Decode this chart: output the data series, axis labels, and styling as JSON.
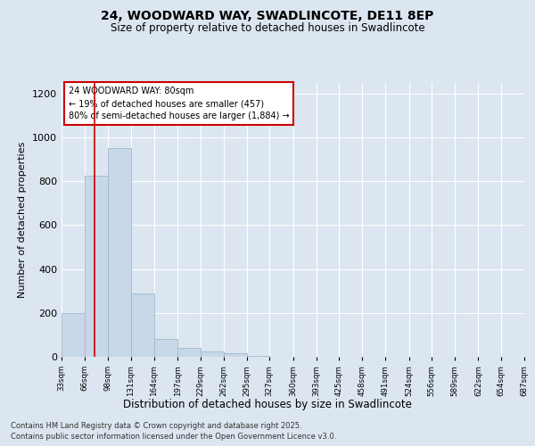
{
  "title1": "24, WOODWARD WAY, SWADLINCOTE, DE11 8EP",
  "title2": "Size of property relative to detached houses in Swadlincote",
  "xlabel": "Distribution of detached houses by size in Swadlincote",
  "ylabel": "Number of detached properties",
  "bar_edges": [
    33,
    66,
    98,
    131,
    164,
    197,
    229,
    262,
    295,
    327,
    360,
    393,
    425,
    458,
    491,
    524,
    556,
    589,
    622,
    654,
    687
  ],
  "bar_heights": [
    200,
    825,
    950,
    290,
    80,
    40,
    25,
    15,
    5,
    2,
    1,
    0,
    0,
    0,
    0,
    0,
    0,
    0,
    0,
    0
  ],
  "bar_color": "#c8d8e8",
  "bar_edgecolor": "#a0b8d0",
  "vline_x": 80,
  "vline_color": "#cc0000",
  "annotation_lines": [
    "24 WOODWARD WAY: 80sqm",
    "← 19% of detached houses are smaller (457)",
    "80% of semi-detached houses are larger (1,884) →"
  ],
  "annotation_box_color": "#ffffff",
  "annotation_box_edgecolor": "#cc0000",
  "ylim": [
    0,
    1250
  ],
  "yticks": [
    0,
    200,
    400,
    600,
    800,
    1000,
    1200
  ],
  "bg_color": "#dce6f0",
  "plot_bg_color": "#dce6f0",
  "footer_line1": "Contains HM Land Registry data © Crown copyright and database right 2025.",
  "footer_line2": "Contains public sector information licensed under the Open Government Licence v3.0.",
  "tick_labels": [
    "33sqm",
    "66sqm",
    "98sqm",
    "131sqm",
    "164sqm",
    "197sqm",
    "229sqm",
    "262sqm",
    "295sqm",
    "327sqm",
    "360sqm",
    "393sqm",
    "425sqm",
    "458sqm",
    "491sqm",
    "524sqm",
    "556sqm",
    "589sqm",
    "622sqm",
    "654sqm",
    "687sqm"
  ]
}
